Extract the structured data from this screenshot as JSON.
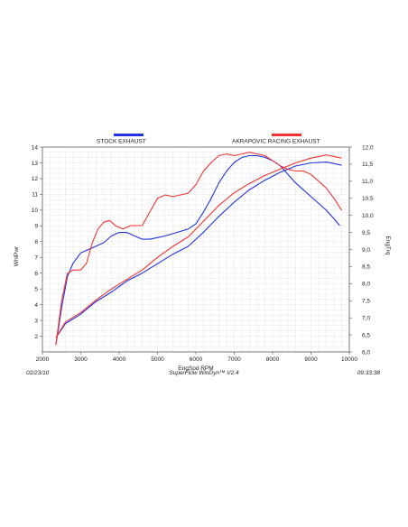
{
  "footer": {
    "date": "02/23/10",
    "software": "SuperFlow WinDyn™ V2.4",
    "time": "09:33:38"
  },
  "chart_data": {
    "type": "line",
    "xlabel": "EngSpd  RPM",
    "ylabel_left": "WhlPwr",
    "ylabel_right": "EngTrq",
    "xlim": [
      2000,
      10000
    ],
    "ylim_left": [
      1,
      14
    ],
    "ylim_right": [
      6.0,
      12.0
    ],
    "x_ticks": [
      "2000",
      "3000",
      "4000",
      "5000",
      "6000",
      "7000",
      "8000",
      "9000",
      "10000"
    ],
    "y_left_ticks": [
      "2",
      "3",
      "4",
      "5",
      "6",
      "7",
      "8",
      "9",
      "10",
      "11",
      "12",
      "13",
      "14"
    ],
    "y_right_ticks": [
      "6,0",
      "6,5",
      "7,0",
      "7,5",
      "8,0",
      "8,5",
      "9,0",
      "9,5",
      "10,0",
      "10,5",
      "11,0",
      "11,5",
      "12,0"
    ],
    "grid": true,
    "legend_position": "top",
    "legend": [
      {
        "name": "STOCK EXHAUST",
        "color": "#2233dd"
      },
      {
        "name": "AKRAPOVIC RACING EXHAUST",
        "color": "#ee3333"
      }
    ],
    "series": [
      {
        "name": "STOCK EXHAUST",
        "color": "#2233dd",
        "axis": "right",
        "quantity": "EngTrq",
        "points": [
          [
            2350,
            6.2
          ],
          [
            2500,
            7.3
          ],
          [
            2650,
            8.2
          ],
          [
            2800,
            8.6
          ],
          [
            3000,
            8.9
          ],
          [
            3200,
            9.0
          ],
          [
            3400,
            9.1
          ],
          [
            3600,
            9.2
          ],
          [
            3800,
            9.4
          ],
          [
            4000,
            9.5
          ],
          [
            4200,
            9.5
          ],
          [
            4400,
            9.4
          ],
          [
            4600,
            9.3
          ],
          [
            4800,
            9.3
          ],
          [
            5000,
            9.35
          ],
          [
            5200,
            9.4
          ],
          [
            5500,
            9.5
          ],
          [
            5800,
            9.6
          ],
          [
            6000,
            9.75
          ],
          [
            6200,
            10.1
          ],
          [
            6400,
            10.5
          ],
          [
            6600,
            10.95
          ],
          [
            6800,
            11.3
          ],
          [
            7000,
            11.55
          ],
          [
            7200,
            11.7
          ],
          [
            7400,
            11.75
          ],
          [
            7600,
            11.75
          ],
          [
            7800,
            11.7
          ],
          [
            8000,
            11.6
          ],
          [
            8200,
            11.45
          ],
          [
            8400,
            11.2
          ],
          [
            8600,
            10.95
          ],
          [
            8800,
            10.75
          ],
          [
            9000,
            10.55
          ],
          [
            9200,
            10.35
          ],
          [
            9400,
            10.15
          ],
          [
            9600,
            9.9
          ],
          [
            9750,
            9.7
          ]
        ]
      },
      {
        "name": "STOCK EXHAUST",
        "color": "#2233dd",
        "axis": "left",
        "quantity": "WhlPwr",
        "points": [
          [
            2350,
            1.9
          ],
          [
            2600,
            2.8
          ],
          [
            3000,
            3.4
          ],
          [
            3400,
            4.2
          ],
          [
            3800,
            4.8
          ],
          [
            4200,
            5.5
          ],
          [
            4600,
            6.0
          ],
          [
            5000,
            6.6
          ],
          [
            5400,
            7.2
          ],
          [
            5800,
            7.7
          ],
          [
            6200,
            8.6
          ],
          [
            6600,
            9.6
          ],
          [
            7000,
            10.5
          ],
          [
            7400,
            11.3
          ],
          [
            7800,
            11.9
          ],
          [
            8200,
            12.4
          ],
          [
            8600,
            12.8
          ],
          [
            9000,
            13.0
          ],
          [
            9400,
            13.05
          ],
          [
            9800,
            12.85
          ]
        ]
      },
      {
        "name": "AKRAPOVIC RACING EXHAUST",
        "color": "#ee3333",
        "axis": "right",
        "quantity": "EngTrq",
        "points": [
          [
            2350,
            6.2
          ],
          [
            2500,
            7.5
          ],
          [
            2650,
            8.3
          ],
          [
            2800,
            8.4
          ],
          [
            3000,
            8.4
          ],
          [
            3150,
            8.6
          ],
          [
            3300,
            9.2
          ],
          [
            3450,
            9.6
          ],
          [
            3600,
            9.8
          ],
          [
            3750,
            9.85
          ],
          [
            3900,
            9.7
          ],
          [
            4100,
            9.6
          ],
          [
            4300,
            9.7
          ],
          [
            4600,
            9.7
          ],
          [
            4800,
            10.1
          ],
          [
            5000,
            10.5
          ],
          [
            5200,
            10.6
          ],
          [
            5400,
            10.55
          ],
          [
            5600,
            10.6
          ],
          [
            5800,
            10.65
          ],
          [
            6000,
            10.9
          ],
          [
            6200,
            11.3
          ],
          [
            6400,
            11.55
          ],
          [
            6600,
            11.75
          ],
          [
            6800,
            11.8
          ],
          [
            7000,
            11.75
          ],
          [
            7200,
            11.8
          ],
          [
            7400,
            11.85
          ],
          [
            7600,
            11.8
          ],
          [
            7800,
            11.75
          ],
          [
            8000,
            11.6
          ],
          [
            8200,
            11.45
          ],
          [
            8400,
            11.35
          ],
          [
            8600,
            11.3
          ],
          [
            8800,
            11.3
          ],
          [
            9000,
            11.2
          ],
          [
            9200,
            11.0
          ],
          [
            9400,
            10.8
          ],
          [
            9600,
            10.5
          ],
          [
            9800,
            10.15
          ]
        ]
      },
      {
        "name": "AKRAPOVIC RACING EXHAUST",
        "color": "#ee3333",
        "axis": "left",
        "quantity": "WhlPwr",
        "points": [
          [
            2350,
            1.9
          ],
          [
            2600,
            2.9
          ],
          [
            3000,
            3.5
          ],
          [
            3400,
            4.3
          ],
          [
            3800,
            5.0
          ],
          [
            4200,
            5.6
          ],
          [
            4600,
            6.2
          ],
          [
            5000,
            7.0
          ],
          [
            5400,
            7.7
          ],
          [
            5800,
            8.3
          ],
          [
            6200,
            9.3
          ],
          [
            6600,
            10.3
          ],
          [
            7000,
            11.1
          ],
          [
            7400,
            11.7
          ],
          [
            7800,
            12.2
          ],
          [
            8200,
            12.6
          ],
          [
            8600,
            13.0
          ],
          [
            9000,
            13.3
          ],
          [
            9400,
            13.5
          ],
          [
            9800,
            13.3
          ]
        ]
      }
    ]
  }
}
